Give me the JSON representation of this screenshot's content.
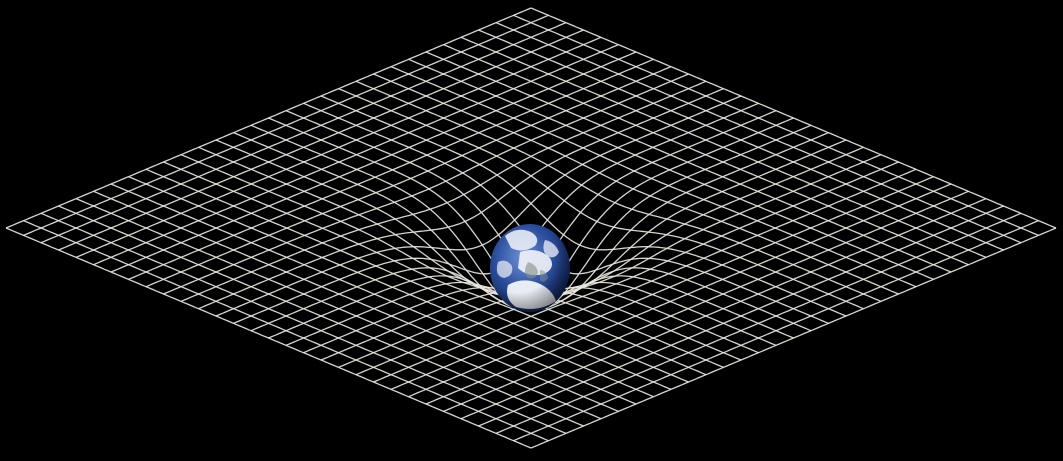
{
  "scene": {
    "background_color": "#000000",
    "grid_line_color": "#e8e6dc",
    "planet": {
      "name": "earth",
      "ocean_color": "#2b4f9e",
      "deep_ocean_color": "#10275e",
      "cloud_color": "#f2f4f8",
      "land_color": "#8a8f86"
    }
  }
}
